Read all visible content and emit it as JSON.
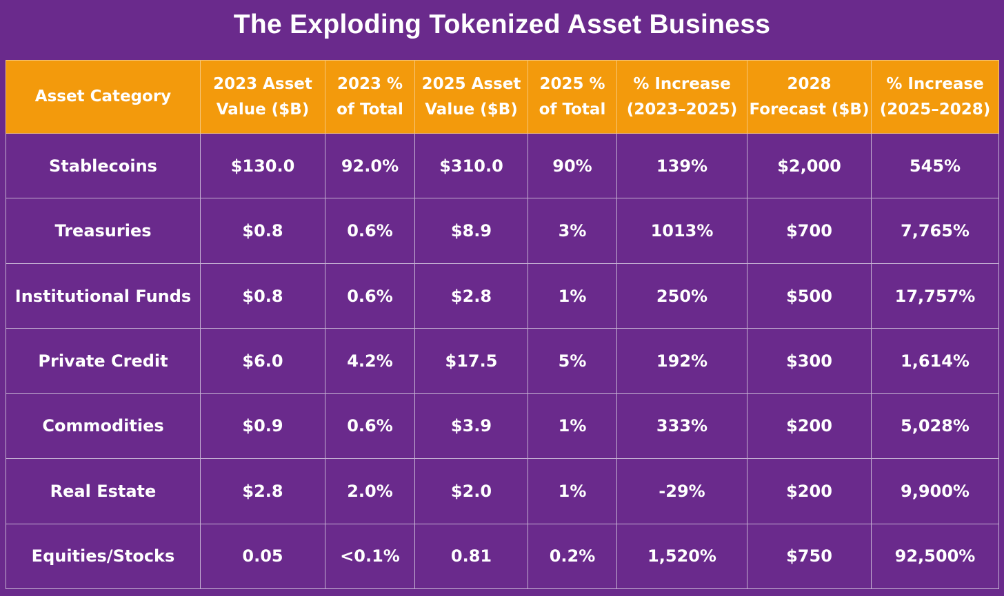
{
  "chart_data": {
    "type": "table",
    "title": "The Exploding Tokenized Asset Business",
    "columns": [
      [
        "Asset Category"
      ],
      [
        "2023 Asset",
        "Value ($B)"
      ],
      [
        "2023 %",
        "of Total"
      ],
      [
        "2025 Asset",
        "Value ($B)"
      ],
      [
        "2025 %",
        "of Total"
      ],
      [
        "% Increase",
        "(2023–2025)"
      ],
      [
        "2028",
        "Forecast ($B)"
      ],
      [
        "% Increase",
        "(2025–2028)"
      ]
    ],
    "rows": [
      [
        "Stablecoins",
        "$130.0",
        "92.0%",
        "$310.0",
        "90%",
        "139%",
        "$2,000",
        "545%"
      ],
      [
        "Treasuries",
        "$0.8",
        "0.6%",
        "$8.9",
        "3%",
        "1013%",
        "$700",
        "7,765%"
      ],
      [
        "Institutional Funds",
        "$0.8",
        "0.6%",
        "$2.8",
        "1%",
        "250%",
        "$500",
        "17,757%"
      ],
      [
        "Private Credit",
        "$6.0",
        "4.2%",
        "$17.5",
        "5%",
        "192%",
        "$300",
        "1,614%"
      ],
      [
        "Commodities",
        "$0.9",
        "0.6%",
        "$3.9",
        "1%",
        "333%",
        "$200",
        "5,028%"
      ],
      [
        "Real Estate",
        "$2.8",
        "2.0%",
        "$2.0",
        "1%",
        "-29%",
        "$200",
        "9,900%"
      ],
      [
        "Equities/Stocks",
        "0.05",
        "<0.1%",
        "0.81",
        "0.2%",
        "1,520%",
        "$750",
        "92,500%"
      ]
    ]
  },
  "colors": {
    "background": "#6a2a8c",
    "header": "#f39a0c",
    "text": "#ffffff",
    "grid": "#c6b2d4"
  }
}
